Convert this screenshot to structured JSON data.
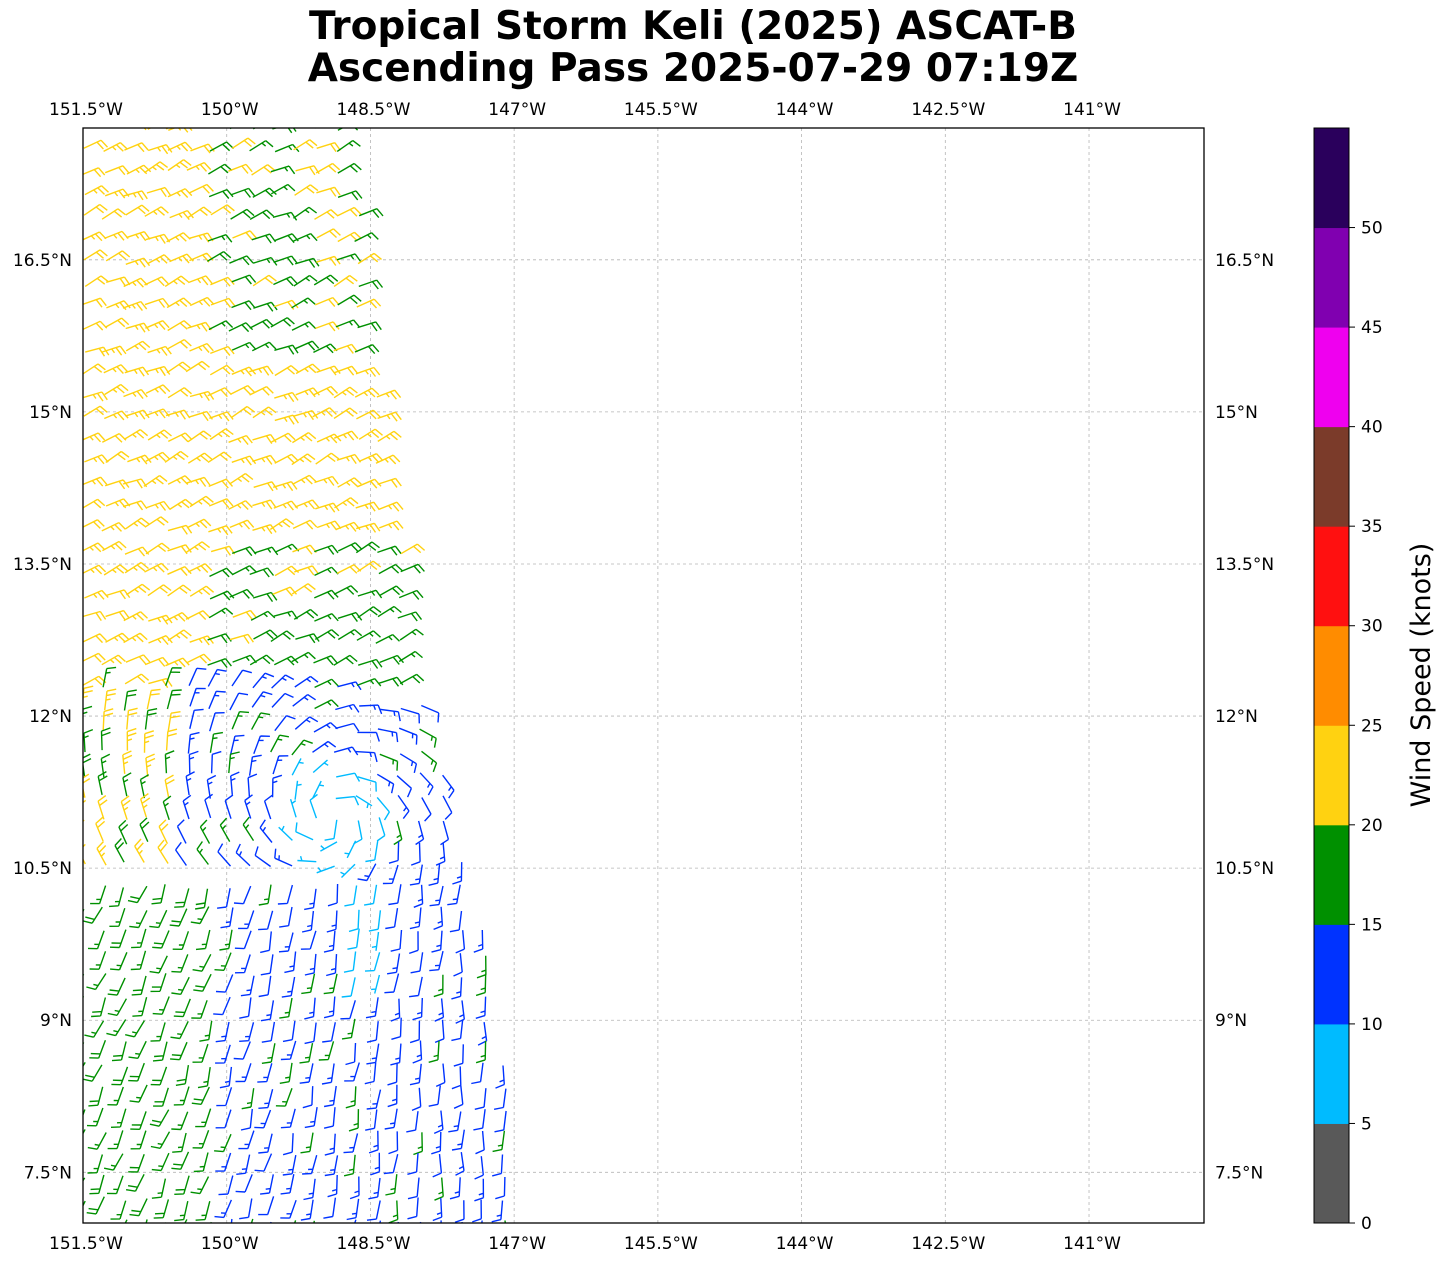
{
  "title": {
    "line1": "Tropical Storm Keli (2025) ASCAT-B",
    "line2": "Ascending Pass 2025-07-29 07:19Z"
  },
  "map": {
    "lon_range": [
      -151.5,
      -139.8
    ],
    "lat_range": [
      7.0,
      17.8
    ],
    "gridlines": true,
    "lon_ticks": [
      {
        "value": -151.5,
        "label": "151.5°W"
      },
      {
        "value": -150.0,
        "label": "150°W"
      },
      {
        "value": -148.5,
        "label": "148.5°W"
      },
      {
        "value": -147.0,
        "label": "147°W"
      },
      {
        "value": -145.5,
        "label": "145.5°W"
      },
      {
        "value": -144.0,
        "label": "144°W"
      },
      {
        "value": -142.5,
        "label": "142.5°W"
      },
      {
        "value": -141.0,
        "label": "141°W"
      }
    ],
    "lat_ticks": [
      {
        "value": 16.5,
        "label": "16.5°N"
      },
      {
        "value": 15.0,
        "label": "15°N"
      },
      {
        "value": 13.5,
        "label": "13.5°N"
      },
      {
        "value": 12.0,
        "label": "12°N"
      },
      {
        "value": 10.5,
        "label": "10.5°N"
      },
      {
        "value": 9.0,
        "label": "9°N"
      },
      {
        "value": 7.5,
        "label": "7.5°N"
      }
    ],
    "swath_left_edge": [
      [
        -151.5,
        17.8
      ],
      [
        -151.5,
        7.0
      ]
    ],
    "swath_right_edge": [
      [
        -148.75,
        17.8
      ],
      [
        -148.0,
        12.2
      ],
      [
        -147.2,
        9.6
      ],
      [
        -146.9,
        7.0
      ]
    ],
    "wind_field": {
      "center": [
        -148.9,
        11.0
      ],
      "regions": [
        {
          "label": "north",
          "lat_min": 12.3,
          "speed_range": [
            15,
            25
          ],
          "direction_from_deg": 70
        },
        {
          "label": "core",
          "lat_min": 10.5,
          "lat_max": 12.3,
          "speed_range": [
            5,
            15
          ]
        },
        {
          "label": "south",
          "lat_max": 10.5,
          "speed_range": [
            10,
            20
          ],
          "direction_from_deg": 190
        }
      ]
    }
  },
  "colorbar": {
    "label": "Wind Speed (knots)",
    "range": [
      0,
      55
    ],
    "bins": [
      {
        "min": 0,
        "max": 5,
        "color": "#595959"
      },
      {
        "min": 5,
        "max": 10,
        "color": "#00bbff"
      },
      {
        "min": 10,
        "max": 15,
        "color": "#0033ff"
      },
      {
        "min": 15,
        "max": 20,
        "color": "#009000"
      },
      {
        "min": 20,
        "max": 25,
        "color": "#ffd211"
      },
      {
        "min": 25,
        "max": 30,
        "color": "#ff8c00"
      },
      {
        "min": 30,
        "max": 35,
        "color": "#ff1010"
      },
      {
        "min": 35,
        "max": 40,
        "color": "#7b3b2a"
      },
      {
        "min": 40,
        "max": 45,
        "color": "#ef00ef"
      },
      {
        "min": 45,
        "max": 50,
        "color": "#8000b0"
      },
      {
        "min": 50,
        "max": 55,
        "color": "#2a005c"
      }
    ],
    "tick_labels": [
      "0",
      "5",
      "10",
      "15",
      "20",
      "25",
      "30",
      "35",
      "40",
      "45",
      "50"
    ]
  }
}
